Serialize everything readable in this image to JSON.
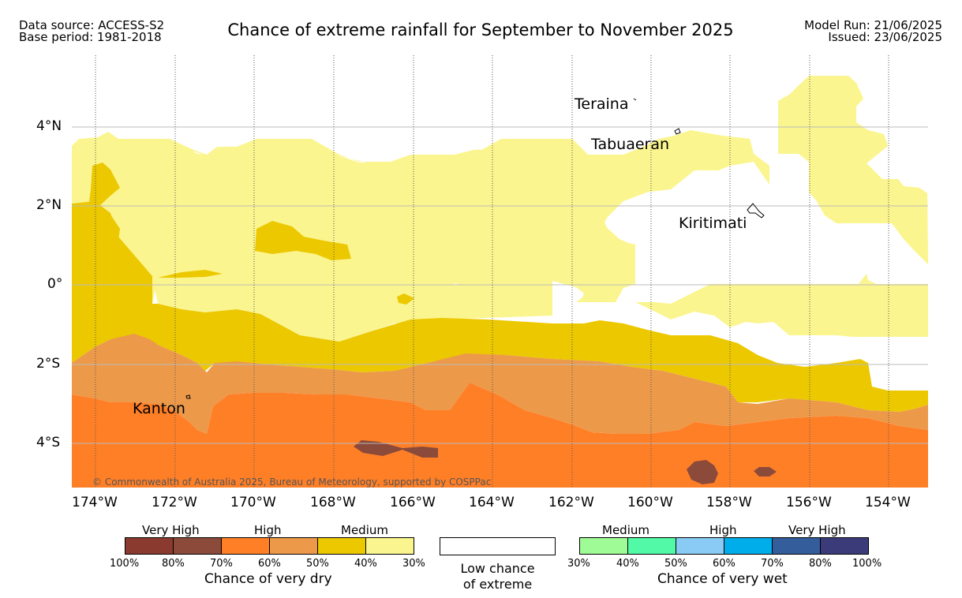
{
  "header": {
    "data_source": "Data source: ACCESS-S2",
    "base_period": "Base period: 1981-2018",
    "title": "Chance of extreme rainfall for September to November 2025",
    "model_run": "Model Run: 21/06/2025",
    "issued": "Issued: 23/06/2025"
  },
  "map": {
    "lat_labels": [
      "4°N",
      "2°N",
      "0°",
      "2°S",
      "4°S"
    ],
    "lon_labels": [
      "174°W",
      "172°W",
      "170°W",
      "168°W",
      "166°W",
      "164°W",
      "162°W",
      "160°W",
      "158°W",
      "156°W",
      "154°W"
    ],
    "places": {
      "teraina": "Teraina",
      "tabuaeran": "Tabuaeran",
      "kiritimati": "Kiritimati",
      "kanton": "Kanton"
    },
    "credit": "© Commonwealth of Australia 2025, Bureau of Meteorology, supported by COSPPac"
  },
  "legend": {
    "dry": {
      "categories": [
        "Very High",
        "High",
        "Medium"
      ],
      "colors": [
        "#8b3a2f",
        "#8b4a3a",
        "#ff7f27",
        "#ec9a4a",
        "#ecc800",
        "#fbf58f"
      ],
      "ticks": [
        "100%",
        "80%",
        "70%",
        "60%",
        "50%",
        "40%",
        "30%"
      ],
      "title": "Chance of very dry"
    },
    "low": {
      "line1": "Low chance",
      "line2": "of extreme"
    },
    "wet": {
      "categories": [
        "Medium",
        "High",
        "Very High"
      ],
      "colors": [
        "#9efb96",
        "#52f9a6",
        "#89cbf5",
        "#00adeb",
        "#335e9b",
        "#3c3b7a"
      ],
      "ticks": [
        "30%",
        "40%",
        "50%",
        "60%",
        "70%",
        "80%",
        "100%"
      ],
      "title": "Chance of very wet"
    }
  }
}
